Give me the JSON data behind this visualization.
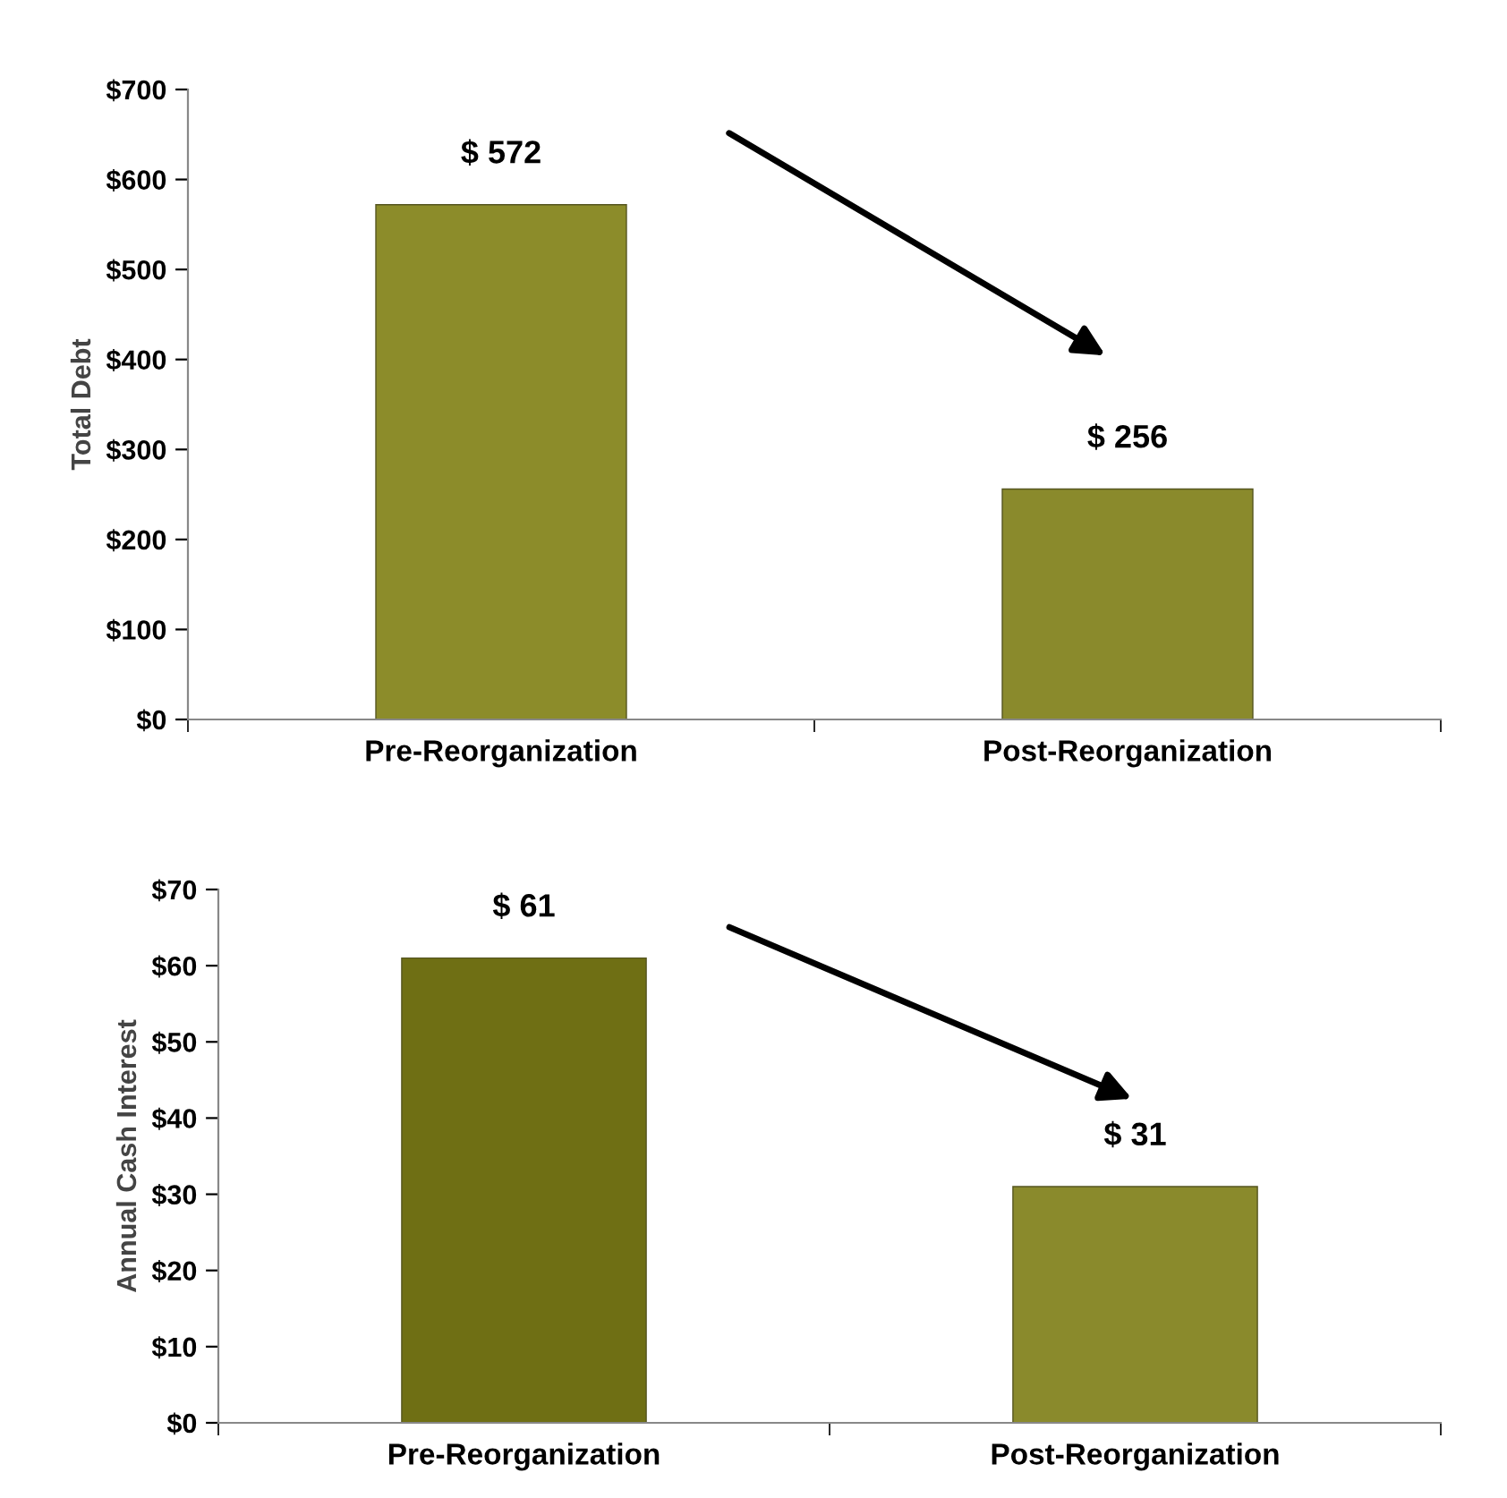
{
  "chart_data": [
    {
      "type": "bar",
      "ylabel": "Total Debt",
      "categories": [
        "Pre-Reorganization",
        "Post-Reorganization"
      ],
      "values": [
        572,
        256
      ],
      "colors": [
        "#8c8c2a",
        "#8a8a2c"
      ],
      "value_labels": [
        "$ 572",
        "$ 256"
      ],
      "ylim": [
        0,
        700
      ],
      "yticks": [
        {
          "value": 0,
          "label": "$0"
        },
        {
          "value": 100,
          "label": "$100"
        },
        {
          "value": 200,
          "label": "$200"
        },
        {
          "value": 300,
          "label": "$300"
        },
        {
          "value": 400,
          "label": "$400"
        },
        {
          "value": 500,
          "label": "$500"
        },
        {
          "value": 600,
          "label": "$600"
        },
        {
          "value": 700,
          "label": "$700"
        }
      ]
    },
    {
      "type": "bar",
      "ylabel": "Annual Cash Interest",
      "categories": [
        "Pre-Reorganization",
        "Post-Reorganization"
      ],
      "values": [
        61,
        31
      ],
      "colors": [
        "#6f6f14",
        "#8a8a2c"
      ],
      "value_labels": [
        "$ 61",
        "$ 31"
      ],
      "ylim": [
        0,
        70
      ],
      "yticks": [
        {
          "value": 0,
          "label": "$0"
        },
        {
          "value": 10,
          "label": "$10"
        },
        {
          "value": 20,
          "label": "$20"
        },
        {
          "value": 30,
          "label": "$30"
        },
        {
          "value": 40,
          "label": "$40"
        },
        {
          "value": 50,
          "label": "$50"
        },
        {
          "value": 60,
          "label": "$60"
        },
        {
          "value": 70,
          "label": "$70"
        }
      ]
    }
  ]
}
